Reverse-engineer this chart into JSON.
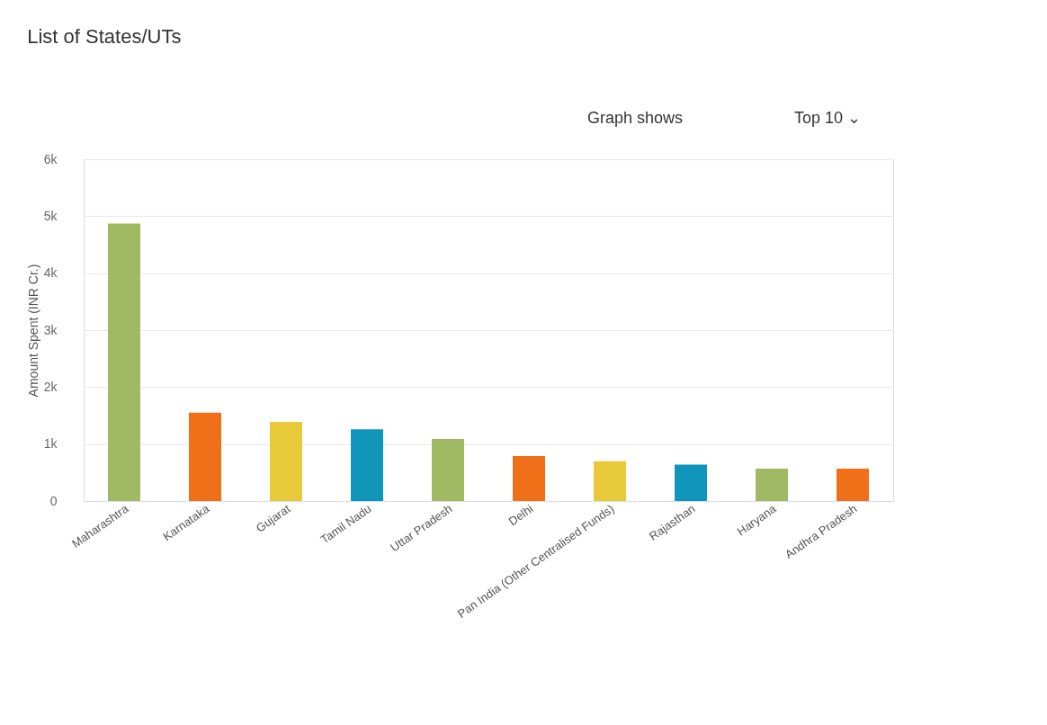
{
  "chart_data": {
    "type": "bar",
    "title": "List of States/UTs",
    "ylabel": "Amount Spent (INR Cr.)",
    "categories": [
      "Maharashtra",
      "Karnataka",
      "Gujarat",
      "Tamil Nadu",
      "Uttar Pradesh",
      "Delhi",
      "Pan India (Other Centralised Funds)",
      "Rajasthan",
      "Haryana",
      "Andhra Pradesh"
    ],
    "values": [
      4870,
      1550,
      1390,
      1260,
      1090,
      790,
      700,
      640,
      570,
      570
    ],
    "colors": [
      "#a2b964",
      "#f07019",
      "#e8c93a",
      "#1196bb",
      "#a2b964",
      "#f07019",
      "#e8c93a",
      "#1196bb",
      "#a2b964",
      "#f07019"
    ],
    "ylim": [
      0,
      6000
    ],
    "yticks": [
      0,
      {
        "value": 1000,
        "label": "1k"
      },
      {
        "value": 2000,
        "label": "2k"
      },
      {
        "value": 3000,
        "label": "3k"
      },
      {
        "value": 4000,
        "label": "4k"
      },
      {
        "value": 5000,
        "label": "5k"
      },
      {
        "value": 6000,
        "label": "6k"
      }
    ],
    "grid": "y",
    "annotations": [
      "Graph shows",
      "Top 10 ⌄"
    ]
  }
}
